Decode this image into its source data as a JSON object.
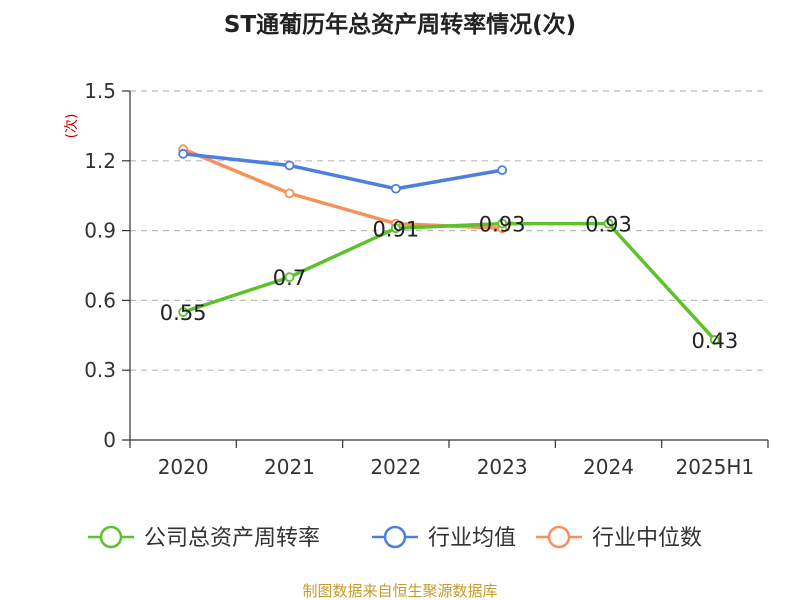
{
  "chart_data": {
    "type": "line",
    "title": "ST通葡历年总资产周转率情况(次)",
    "ylabel": "(次)",
    "categories": [
      "2020",
      "2021",
      "2022",
      "2023",
      "2024",
      "2025H1"
    ],
    "ylim": [
      0,
      1.5
    ],
    "yticks": [
      0,
      0.3,
      0.6,
      0.9,
      1.2,
      1.5
    ],
    "ytick_labels": [
      "0",
      "0.3",
      "0.6",
      "0.9",
      "1.2",
      "1.5"
    ],
    "grid": true,
    "legend_position": "bottom",
    "series": [
      {
        "name": "公司总资产周转率",
        "color": "#5cc12a",
        "values": [
          0.55,
          0.7,
          0.91,
          0.93,
          0.93,
          0.43
        ],
        "labels": [
          "0.55",
          "0.7",
          "0.91",
          "0.93",
          "0.93",
          "0.43"
        ]
      },
      {
        "name": "行业均值",
        "color": "#4d7fdd",
        "values": [
          1.23,
          1.18,
          1.08,
          1.16,
          null,
          null
        ]
      },
      {
        "name": "行业中位数",
        "color": "#f5915a",
        "values": [
          1.25,
          1.06,
          0.93,
          0.91,
          null,
          null
        ]
      }
    ]
  },
  "source": "制图数据来自恒生聚源数据库"
}
